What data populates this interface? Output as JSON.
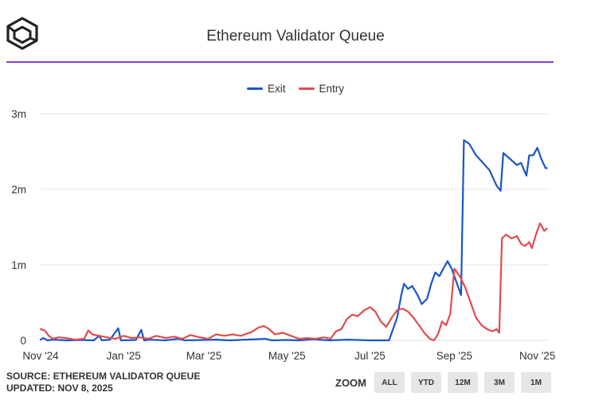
{
  "header": {
    "title": "Ethereum Validator Queue",
    "logo": "cube-logo-icon"
  },
  "colors": {
    "accent_rule": "#8a3fd6",
    "exit": "#1a56c8",
    "entry": "#e24b4b",
    "grid": "#e6e6e6"
  },
  "chart_data": {
    "type": "line",
    "title": "Ethereum Validator Queue",
    "xlabel": "",
    "ylabel": "",
    "ylim": [
      0,
      3000000
    ],
    "yticks": [
      0,
      1000000,
      2000000,
      3000000
    ],
    "ytick_labels": [
      "0",
      "1m",
      "2m",
      "3m"
    ],
    "xlim": [
      "2024-11-01",
      "2025-11-10"
    ],
    "xticks": [
      "2024-11-01",
      "2025-01-01",
      "2025-03-01",
      "2025-05-01",
      "2025-07-01",
      "2025-09-01",
      "2025-11-01"
    ],
    "xtick_labels": [
      "Nov '24",
      "Jan '25",
      "Mar '25",
      "May '25",
      "Jul '25",
      "Sep '25",
      "Nov '25"
    ],
    "legend_position": "top-center",
    "grid": "horizontal",
    "series": [
      {
        "name": "Exit",
        "color": "#1a56c8",
        "points": [
          [
            "2024-11-01",
            10000
          ],
          [
            "2024-11-03",
            30000
          ],
          [
            "2024-11-06",
            0
          ],
          [
            "2024-11-10",
            10000
          ],
          [
            "2024-11-20",
            0
          ],
          [
            "2024-12-01",
            5000
          ],
          [
            "2024-12-10",
            0
          ],
          [
            "2024-12-14",
            60000
          ],
          [
            "2024-12-16",
            0
          ],
          [
            "2024-12-22",
            10000
          ],
          [
            "2024-12-28",
            160000
          ],
          [
            "2024-12-30",
            0
          ],
          [
            "2025-01-10",
            5000
          ],
          [
            "2025-01-14",
            140000
          ],
          [
            "2025-01-16",
            0
          ],
          [
            "2025-01-20",
            10000
          ],
          [
            "2025-02-01",
            0
          ],
          [
            "2025-02-10",
            20000
          ],
          [
            "2025-02-15",
            0
          ],
          [
            "2025-03-01",
            5000
          ],
          [
            "2025-03-10",
            10000
          ],
          [
            "2025-03-20",
            0
          ],
          [
            "2025-04-01",
            10000
          ],
          [
            "2025-04-15",
            20000
          ],
          [
            "2025-04-20",
            0
          ],
          [
            "2025-05-01",
            5000
          ],
          [
            "2025-05-10",
            0
          ],
          [
            "2025-05-20",
            15000
          ],
          [
            "2025-06-01",
            0
          ],
          [
            "2025-06-15",
            10000
          ],
          [
            "2025-07-01",
            0
          ],
          [
            "2025-07-15",
            0
          ],
          [
            "2025-07-18",
            150000
          ],
          [
            "2025-07-21",
            300000
          ],
          [
            "2025-07-24",
            600000
          ],
          [
            "2025-07-26",
            750000
          ],
          [
            "2025-07-29",
            680000
          ],
          [
            "2025-08-01",
            720000
          ],
          [
            "2025-08-05",
            600000
          ],
          [
            "2025-08-08",
            480000
          ],
          [
            "2025-08-12",
            550000
          ],
          [
            "2025-08-15",
            750000
          ],
          [
            "2025-08-18",
            900000
          ],
          [
            "2025-08-21",
            850000
          ],
          [
            "2025-08-24",
            950000
          ],
          [
            "2025-08-27",
            1050000
          ],
          [
            "2025-08-30",
            950000
          ],
          [
            "2025-09-01",
            850000
          ],
          [
            "2025-09-04",
            700000
          ],
          [
            "2025-09-06",
            600000
          ],
          [
            "2025-09-08",
            2650000
          ],
          [
            "2025-09-12",
            2600000
          ],
          [
            "2025-09-17",
            2450000
          ],
          [
            "2025-09-22",
            2350000
          ],
          [
            "2025-09-27",
            2250000
          ],
          [
            "2025-10-02",
            2050000
          ],
          [
            "2025-10-05",
            1980000
          ],
          [
            "2025-10-07",
            2480000
          ],
          [
            "2025-10-12",
            2400000
          ],
          [
            "2025-10-17",
            2320000
          ],
          [
            "2025-10-20",
            2350000
          ],
          [
            "2025-10-24",
            2180000
          ],
          [
            "2025-10-26",
            2450000
          ],
          [
            "2025-10-29",
            2450000
          ],
          [
            "2025-11-01",
            2550000
          ],
          [
            "2025-11-04",
            2400000
          ],
          [
            "2025-11-07",
            2280000
          ],
          [
            "2025-11-08",
            2280000
          ]
        ]
      },
      {
        "name": "Entry",
        "color": "#e24b4b",
        "points": [
          [
            "2024-11-01",
            150000
          ],
          [
            "2024-11-04",
            130000
          ],
          [
            "2024-11-07",
            60000
          ],
          [
            "2024-11-10",
            20000
          ],
          [
            "2024-11-14",
            40000
          ],
          [
            "2024-11-20",
            30000
          ],
          [
            "2024-11-26",
            10000
          ],
          [
            "2024-12-03",
            20000
          ],
          [
            "2024-12-06",
            130000
          ],
          [
            "2024-12-09",
            80000
          ],
          [
            "2024-12-14",
            60000
          ],
          [
            "2024-12-20",
            40000
          ],
          [
            "2024-12-26",
            20000
          ],
          [
            "2025-01-01",
            60000
          ],
          [
            "2025-01-07",
            30000
          ],
          [
            "2025-01-13",
            40000
          ],
          [
            "2025-01-19",
            20000
          ],
          [
            "2025-01-25",
            60000
          ],
          [
            "2025-02-01",
            30000
          ],
          [
            "2025-02-07",
            50000
          ],
          [
            "2025-02-13",
            20000
          ],
          [
            "2025-02-19",
            70000
          ],
          [
            "2025-02-26",
            40000
          ],
          [
            "2025-03-04",
            20000
          ],
          [
            "2025-03-10",
            80000
          ],
          [
            "2025-03-16",
            60000
          ],
          [
            "2025-03-22",
            80000
          ],
          [
            "2025-03-28",
            60000
          ],
          [
            "2025-04-05",
            110000
          ],
          [
            "2025-04-10",
            170000
          ],
          [
            "2025-04-14",
            190000
          ],
          [
            "2025-04-18",
            150000
          ],
          [
            "2025-04-22",
            80000
          ],
          [
            "2025-04-28",
            100000
          ],
          [
            "2025-05-04",
            60000
          ],
          [
            "2025-05-10",
            20000
          ],
          [
            "2025-05-16",
            30000
          ],
          [
            "2025-05-22",
            20000
          ],
          [
            "2025-05-28",
            40000
          ],
          [
            "2025-06-02",
            20000
          ],
          [
            "2025-06-06",
            120000
          ],
          [
            "2025-06-10",
            150000
          ],
          [
            "2025-06-14",
            280000
          ],
          [
            "2025-06-18",
            340000
          ],
          [
            "2025-06-22",
            320000
          ],
          [
            "2025-06-27",
            400000
          ],
          [
            "2025-07-01",
            440000
          ],
          [
            "2025-07-05",
            380000
          ],
          [
            "2025-07-09",
            250000
          ],
          [
            "2025-07-13",
            180000
          ],
          [
            "2025-07-17",
            300000
          ],
          [
            "2025-07-21",
            400000
          ],
          [
            "2025-07-25",
            420000
          ],
          [
            "2025-07-29",
            380000
          ],
          [
            "2025-08-02",
            300000
          ],
          [
            "2025-08-06",
            200000
          ],
          [
            "2025-08-10",
            100000
          ],
          [
            "2025-08-14",
            20000
          ],
          [
            "2025-08-17",
            0
          ],
          [
            "2025-08-20",
            80000
          ],
          [
            "2025-08-23",
            250000
          ],
          [
            "2025-08-26",
            200000
          ],
          [
            "2025-08-29",
            350000
          ],
          [
            "2025-09-01",
            950000
          ],
          [
            "2025-09-05",
            850000
          ],
          [
            "2025-09-09",
            700000
          ],
          [
            "2025-09-13",
            500000
          ],
          [
            "2025-09-17",
            300000
          ],
          [
            "2025-09-21",
            200000
          ],
          [
            "2025-09-25",
            150000
          ],
          [
            "2025-09-29",
            120000
          ],
          [
            "2025-10-02",
            150000
          ],
          [
            "2025-10-04",
            100000
          ],
          [
            "2025-10-06",
            1350000
          ],
          [
            "2025-10-09",
            1400000
          ],
          [
            "2025-10-13",
            1350000
          ],
          [
            "2025-10-17",
            1380000
          ],
          [
            "2025-10-20",
            1280000
          ],
          [
            "2025-10-23",
            1250000
          ],
          [
            "2025-10-26",
            1300000
          ],
          [
            "2025-10-28",
            1220000
          ],
          [
            "2025-10-31",
            1400000
          ],
          [
            "2025-11-03",
            1550000
          ],
          [
            "2025-11-06",
            1450000
          ],
          [
            "2025-11-08",
            1480000
          ]
        ]
      }
    ]
  },
  "footer": {
    "source": "SOURCE: ETHEREUM VALIDATOR QUEUE",
    "updated": "UPDATED: NOV 8, 2025"
  },
  "zoom": {
    "label": "ZOOM",
    "buttons": [
      "ALL",
      "YTD",
      "12M",
      "3M",
      "1M"
    ]
  }
}
